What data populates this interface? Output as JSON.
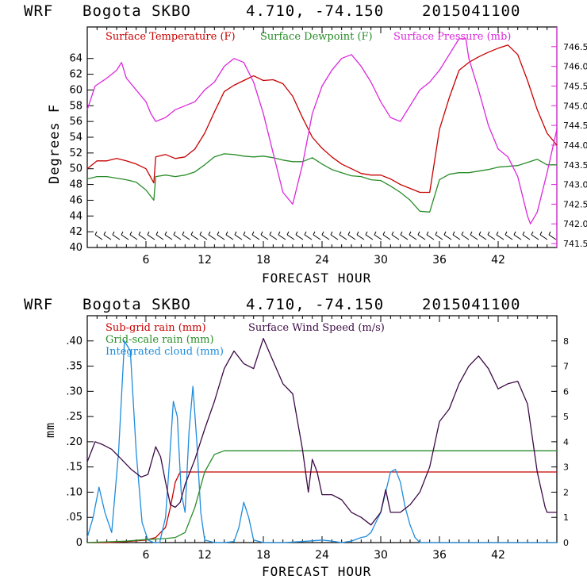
{
  "header": {
    "model": "WRF",
    "station": "Bogota SKBO",
    "coords": "4.710, -74.150",
    "init": "2015041100"
  },
  "colors": {
    "temp": "#c80000",
    "dewpoint": "#288c28",
    "pressure": "#dc28dc",
    "subgrid": "#c80000",
    "gridscale": "#288c28",
    "cloud": "#1e8cdc",
    "wind": "#3c0a46"
  },
  "chart_data": [
    {
      "type": "line",
      "name": "temperature-panel",
      "xlabel": "FORECAST HOUR",
      "ylabel": "Degrees F",
      "xlim": [
        0,
        48
      ],
      "ylim": [
        40,
        68
      ],
      "y2lim": [
        741.4,
        747.0
      ],
      "x_ticks": [
        6,
        12,
        18,
        24,
        30,
        36,
        42
      ],
      "y_ticks": [
        40,
        42,
        44,
        46,
        48,
        50,
        52,
        54,
        56,
        58,
        60,
        62,
        64
      ],
      "y2_ticks": [
        "741.5",
        "742.0",
        "742.5",
        "743.0",
        "743.5",
        "744.0",
        "744.5",
        "745.0",
        "745.5",
        "746.0",
        "746.5"
      ],
      "legend": [
        {
          "label": "Surface Temperature (F)",
          "color_key": "temp"
        },
        {
          "label": "Surface Dewpoint (F)",
          "color_key": "dewpoint"
        },
        {
          "label": "Surface Pressure (mb)",
          "color_key": "pressure"
        }
      ],
      "series": [
        {
          "name": "Surface Temperature (F)",
          "color_key": "temp",
          "axis": "left",
          "x": [
            0,
            1,
            2,
            3,
            4,
            5,
            6,
            6.8,
            7,
            8,
            9,
            10,
            11,
            12,
            13,
            14,
            15,
            16,
            17,
            18,
            19,
            20,
            21,
            22,
            23,
            24,
            25,
            26,
            27,
            28,
            29,
            30,
            31,
            32,
            33,
            34,
            35,
            36,
            37,
            38,
            39,
            40,
            41,
            42,
            43,
            44,
            45,
            46,
            47,
            48
          ],
          "y": [
            50,
            51,
            51,
            51.3,
            51,
            50.6,
            50,
            48.2,
            51.5,
            51.8,
            51.3,
            51.5,
            52.5,
            54.5,
            57.2,
            59.8,
            60.6,
            61.2,
            61.8,
            61.2,
            61.3,
            60.8,
            59.2,
            56.5,
            54,
            52.6,
            51.5,
            50.6,
            50,
            49.4,
            49.2,
            49.2,
            48.7,
            48,
            47.5,
            47,
            47,
            55,
            59,
            62.5,
            63.5,
            64.2,
            64.8,
            65.3,
            65.7,
            64.5,
            61.2,
            57.5,
            54.5,
            53
          ]
        },
        {
          "name": "Surface Dewpoint (F)",
          "color_key": "dewpoint",
          "axis": "left",
          "x": [
            0,
            1,
            2,
            3,
            4,
            5,
            6,
            6.8,
            7,
            8,
            9,
            10,
            11,
            12,
            13,
            14,
            15,
            16,
            17,
            18,
            19,
            20,
            21,
            22,
            23,
            24,
            25,
            26,
            27,
            28,
            29,
            30,
            31,
            32,
            33,
            34,
            35,
            36,
            37,
            38,
            39,
            40,
            41,
            42,
            43,
            44,
            45,
            46,
            47,
            48
          ],
          "y": [
            48.7,
            49,
            49,
            48.8,
            48.6,
            48.3,
            47.3,
            46,
            49,
            49.2,
            49,
            49.2,
            49.6,
            50.5,
            51.5,
            51.9,
            51.8,
            51.6,
            51.5,
            51.6,
            51.4,
            51.1,
            50.9,
            50.9,
            51.4,
            50.6,
            49.9,
            49.5,
            49.1,
            49,
            48.6,
            48.5,
            47.8,
            47,
            46,
            44.6,
            44.5,
            48.6,
            49.3,
            49.5,
            49.5,
            49.7,
            49.9,
            50.2,
            50.3,
            50.4,
            50.8,
            51.2,
            50.5,
            50.5
          ]
        },
        {
          "name": "Surface Pressure (mb)",
          "color_key": "pressure",
          "axis": "right",
          "x": [
            0,
            0.8,
            2,
            3,
            3.5,
            4,
            5,
            6,
            6.5,
            7,
            8,
            9,
            10,
            11,
            12,
            13,
            14,
            15,
            16,
            17,
            18,
            19,
            20,
            21,
            22,
            23,
            24,
            25,
            26,
            27,
            28,
            29,
            30,
            31,
            32,
            33,
            34,
            35,
            36,
            37,
            38,
            38.7,
            39,
            40,
            41,
            42,
            43,
            44,
            45,
            45.3,
            46,
            47,
            48
          ],
          "y": [
            744.9,
            745.5,
            745.7,
            745.9,
            746.1,
            745.7,
            745.4,
            745.1,
            744.8,
            744.6,
            744.7,
            744.9,
            745,
            745.1,
            745.4,
            745.6,
            746.0,
            746.2,
            746.1,
            745.6,
            744.8,
            743.8,
            742.8,
            742.5,
            743.5,
            744.8,
            745.5,
            745.9,
            746.2,
            746.3,
            746.0,
            745.6,
            745.1,
            744.7,
            744.6,
            745.0,
            745.4,
            745.6,
            745.9,
            746.3,
            746.7,
            746.7,
            746.2,
            745.4,
            744.5,
            743.9,
            743.7,
            743.2,
            742.2,
            742.0,
            742.3,
            743.3,
            744.4
          ]
        }
      ]
    },
    {
      "type": "line",
      "name": "precip-panel",
      "xlabel": "FORECAST HOUR",
      "ylabel": "mm",
      "xlim": [
        0,
        48
      ],
      "ylim": [
        0,
        0.45
      ],
      "y2lim": [
        0,
        9
      ],
      "x_ticks": [
        6,
        12,
        18,
        24,
        30,
        36,
        42
      ],
      "y_ticks": [
        "0",
        ".05",
        ".10",
        ".15",
        ".20",
        ".25",
        ".30",
        ".35",
        ".40"
      ],
      "y2_ticks": [
        "0",
        "1",
        "2",
        "3",
        "4",
        "5",
        "6",
        "7",
        "8"
      ],
      "legend": [
        {
          "label": "Sub-grid rain (mm)",
          "color_key": "subgrid"
        },
        {
          "label": "Grid-scale rain (mm)",
          "color_key": "gridscale"
        },
        {
          "label": "Integrated cloud (mm)",
          "color_key": "cloud"
        },
        {
          "label": "Surface Wind Speed (m/s)",
          "color_key": "wind"
        }
      ],
      "series": [
        {
          "name": "Sub-grid rain (mm)",
          "color_key": "subgrid",
          "axis": "left",
          "x": [
            0,
            2,
            4,
            6,
            7,
            8,
            8.5,
            9,
            9.5,
            10,
            48
          ],
          "y": [
            0,
            0,
            0.002,
            0.005,
            0.01,
            0.03,
            0.07,
            0.12,
            0.14,
            0.14,
            0.14
          ]
        },
        {
          "name": "Grid-scale rain (mm)",
          "color_key": "gradscale",
          "axis": "left",
          "x": [
            0,
            4,
            6,
            8,
            9,
            10,
            11,
            12,
            13,
            14,
            48
          ],
          "y": [
            0,
            0.003,
            0.006,
            0.008,
            0.01,
            0.02,
            0.07,
            0.14,
            0.175,
            0.182,
            0.182
          ]
        },
        {
          "name": "Integrated cloud (mm)",
          "color_key": "cloud",
          "axis": "left",
          "x": [
            0,
            0.6,
            1.2,
            1.8,
            2.5,
            3.2,
            3.8,
            4.4,
            5,
            5.6,
            6.2,
            6.8,
            7.4,
            8,
            8.4,
            8.8,
            9.2,
            9.6,
            10,
            10.4,
            10.8,
            11.2,
            11.6,
            12,
            13,
            14,
            15,
            15.5,
            16,
            16.5,
            17,
            18,
            20,
            22,
            24,
            25,
            26,
            27,
            28,
            28.5,
            29,
            29.5,
            30,
            30.5,
            31,
            31.5,
            32,
            32.5,
            33,
            33.5,
            34,
            35,
            40,
            48
          ],
          "y": [
            0.01,
            0.05,
            0.11,
            0.06,
            0.02,
            0.18,
            0.4,
            0.38,
            0.18,
            0.04,
            0.005,
            0,
            0,
            0.05,
            0.16,
            0.28,
            0.25,
            0.1,
            0.06,
            0.22,
            0.31,
            0.2,
            0.06,
            0.005,
            0,
            0,
            0.002,
            0.03,
            0.08,
            0.05,
            0.005,
            0,
            0,
            0.002,
            0.005,
            0.003,
            0,
            0.003,
            0.01,
            0.012,
            0.02,
            0.04,
            0.06,
            0.1,
            0.14,
            0.145,
            0.12,
            0.07,
            0.035,
            0.01,
            0,
            0,
            0,
            0
          ]
        },
        {
          "name": "Surface Wind Speed (m/s)",
          "color_key": "wind",
          "axis": "right",
          "x": [
            0,
            0.8,
            1.5,
            2.5,
            3.5,
            4.5,
            5.5,
            6.2,
            7,
            7.5,
            8,
            8.5,
            9,
            9.5,
            10,
            11,
            12,
            13,
            14,
            15,
            16,
            17,
            18,
            19,
            20,
            21,
            22,
            22.6,
            23,
            23.5,
            24,
            25,
            26,
            27,
            28,
            29,
            30,
            30.5,
            31,
            32,
            33,
            34,
            35,
            36,
            37,
            38,
            39,
            40,
            41,
            42,
            43,
            44,
            45,
            46,
            46.8,
            47,
            48
          ],
          "y": [
            3.2,
            4.0,
            3.9,
            3.7,
            3.3,
            2.9,
            2.6,
            2.7,
            3.8,
            3.4,
            2.4,
            1.5,
            1.4,
            1.6,
            2.3,
            3.3,
            4.5,
            5.6,
            6.9,
            7.6,
            7.1,
            6.9,
            8.1,
            7.2,
            6.3,
            5.9,
            3.7,
            2.0,
            3.3,
            2.8,
            1.9,
            1.9,
            1.7,
            1.2,
            1.0,
            0.7,
            1.2,
            2.1,
            1.2,
            1.2,
            1.5,
            2.0,
            3.0,
            4.8,
            5.3,
            6.3,
            7.0,
            7.4,
            6.9,
            6.1,
            6.3,
            6.4,
            5.5,
            2.8,
            1.4,
            1.2,
            1.2
          ]
        }
      ]
    }
  ]
}
